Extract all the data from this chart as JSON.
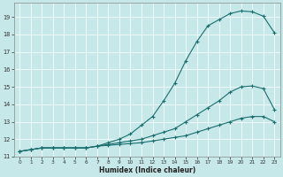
{
  "xlabel": "Humidex (Indice chaleur)",
  "bg_color": "#c6e8e8",
  "line_color": "#1a6e6e",
  "grid_color": "#ffffff",
  "xlim": [
    -0.5,
    23.5
  ],
  "ylim": [
    11.0,
    19.8
  ],
  "xticks": [
    0,
    1,
    2,
    3,
    4,
    5,
    6,
    7,
    8,
    9,
    10,
    11,
    12,
    13,
    14,
    15,
    16,
    17,
    18,
    19,
    20,
    21,
    22,
    23
  ],
  "yticks": [
    11,
    12,
    13,
    14,
    15,
    16,
    17,
    18,
    19
  ],
  "line1_x": [
    0,
    1,
    2,
    3,
    4,
    5,
    6,
    7,
    8,
    9,
    10,
    11,
    12,
    13,
    14,
    15,
    16,
    17,
    18,
    19,
    20,
    21,
    22,
    23
  ],
  "line1_y": [
    11.3,
    11.4,
    11.5,
    11.5,
    11.5,
    11.5,
    11.5,
    11.6,
    11.8,
    12.0,
    12.3,
    12.8,
    13.3,
    14.2,
    15.2,
    16.5,
    17.6,
    18.5,
    18.85,
    19.2,
    19.35,
    19.3,
    19.05,
    18.1
  ],
  "line2_x": [
    0,
    1,
    2,
    3,
    4,
    5,
    6,
    7,
    8,
    9,
    10,
    11,
    12,
    13,
    14,
    15,
    16,
    17,
    18,
    19,
    20,
    21,
    22,
    23
  ],
  "line2_y": [
    11.3,
    11.4,
    11.5,
    11.5,
    11.5,
    11.5,
    11.5,
    11.6,
    11.7,
    11.8,
    11.9,
    12.0,
    12.2,
    12.4,
    12.6,
    13.0,
    13.4,
    13.8,
    14.2,
    14.7,
    15.0,
    15.05,
    14.9,
    13.7
  ],
  "line3_x": [
    0,
    1,
    2,
    3,
    4,
    5,
    6,
    7,
    8,
    9,
    10,
    11,
    12,
    13,
    14,
    15,
    16,
    17,
    18,
    19,
    20,
    21,
    22,
    23
  ],
  "line3_y": [
    11.3,
    11.4,
    11.5,
    11.5,
    11.5,
    11.5,
    11.5,
    11.6,
    11.65,
    11.7,
    11.75,
    11.8,
    11.9,
    12.0,
    12.1,
    12.2,
    12.4,
    12.6,
    12.8,
    13.0,
    13.2,
    13.3,
    13.3,
    13.0
  ]
}
